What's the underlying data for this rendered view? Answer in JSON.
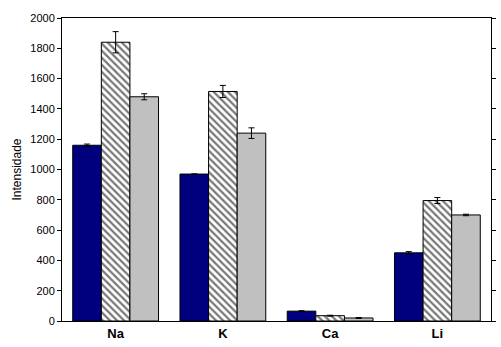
{
  "chart_data": {
    "type": "bar",
    "y_label": "Intensidade",
    "categories": [
      "Na",
      "K",
      "Ca",
      "Li"
    ],
    "series": [
      {
        "color": "#00007f",
        "marker": "solid",
        "values": [
          1160,
          970,
          65,
          450
        ],
        "errors": [
          8,
          0,
          3,
          8
        ]
      },
      {
        "color": "#777777",
        "marker": "hatch",
        "values": [
          1840,
          1515,
          35,
          795
        ],
        "errors": [
          70,
          40,
          3,
          20
        ]
      },
      {
        "color": "#c0c0c0",
        "marker": "solid",
        "values": [
          1480,
          1240,
          20,
          700
        ],
        "errors": [
          20,
          35,
          3,
          5
        ]
      }
    ],
    "ylim": [
      0,
      2000
    ],
    "yticks": [
      0,
      200,
      400,
      600,
      800,
      1000,
      1200,
      1400,
      1600,
      1800,
      2000
    ],
    "grid": false
  }
}
